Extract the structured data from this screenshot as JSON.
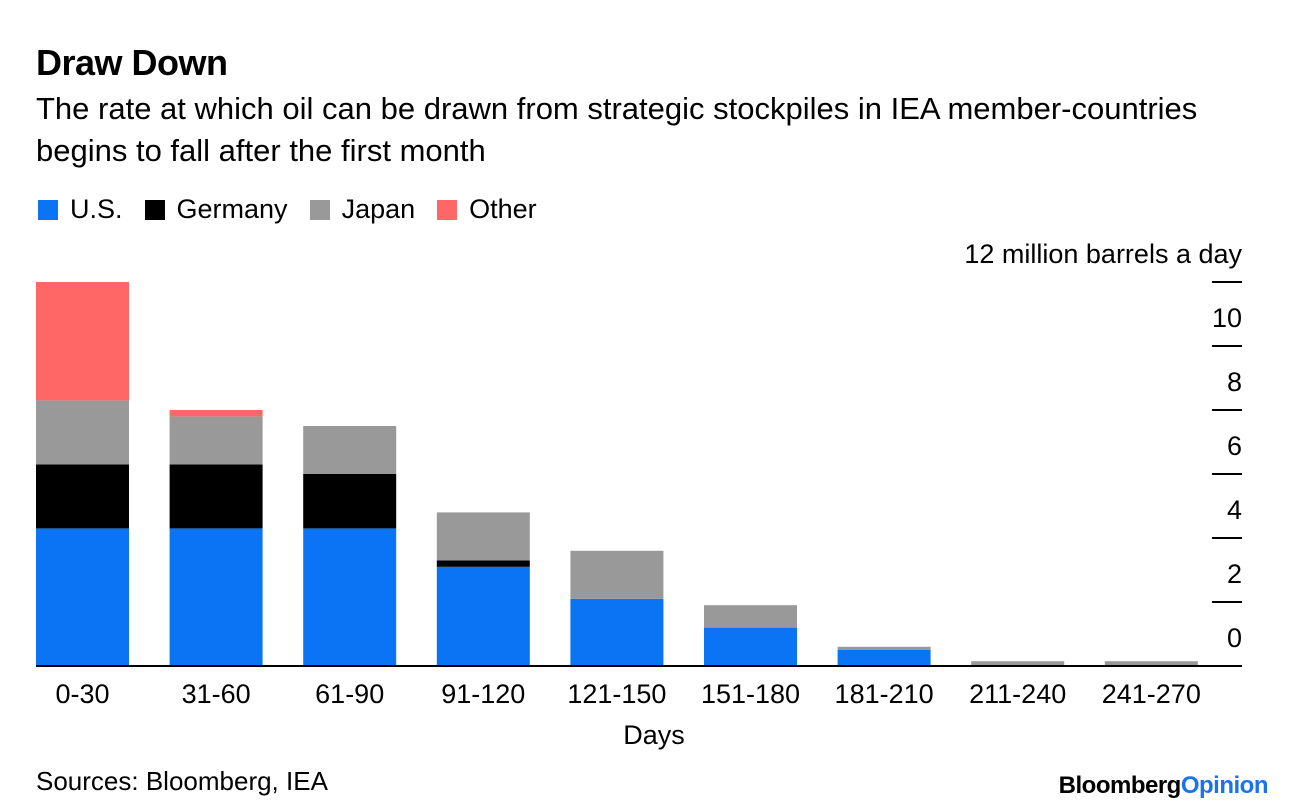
{
  "chart_data": {
    "type": "bar",
    "stacked": true,
    "title": "Draw Down",
    "subtitle": "The rate at which oil can be drawn from strategic stockpiles in IEA member-countries begins to fall after the first month",
    "categories": [
      "0-30",
      "31-60",
      "61-90",
      "91-120",
      "121-150",
      "151-180",
      "181-210",
      "211-240",
      "241-270"
    ],
    "series": [
      {
        "name": "U.S.",
        "color": "#0a74f5",
        "values": [
          4.3,
          4.3,
          4.3,
          3.1,
          2.1,
          1.2,
          0.5,
          0.0,
          0.0
        ]
      },
      {
        "name": "Germany",
        "color": "#000000",
        "values": [
          2.0,
          2.0,
          1.7,
          0.2,
          0.0,
          0.0,
          0.0,
          0.0,
          0.0
        ]
      },
      {
        "name": "Japan",
        "color": "#999999",
        "values": [
          2.0,
          1.5,
          1.5,
          1.5,
          1.5,
          0.7,
          0.1,
          0.15,
          0.15
        ]
      },
      {
        "name": "Other",
        "color": "#ff6666",
        "values": [
          3.7,
          0.2,
          0.0,
          0.0,
          0.0,
          0.0,
          0.0,
          0.0,
          0.0
        ]
      }
    ],
    "xlabel": "Days",
    "ylabel": "12 million barrels a day",
    "yticks": [
      0,
      2,
      4,
      6,
      8,
      10
    ],
    "ylim": [
      0,
      12
    ],
    "legend_position": "top-left"
  },
  "source": "Sources: Bloomberg, IEA",
  "brand": {
    "name": "Bloomberg",
    "suffix": "Opinion"
  }
}
